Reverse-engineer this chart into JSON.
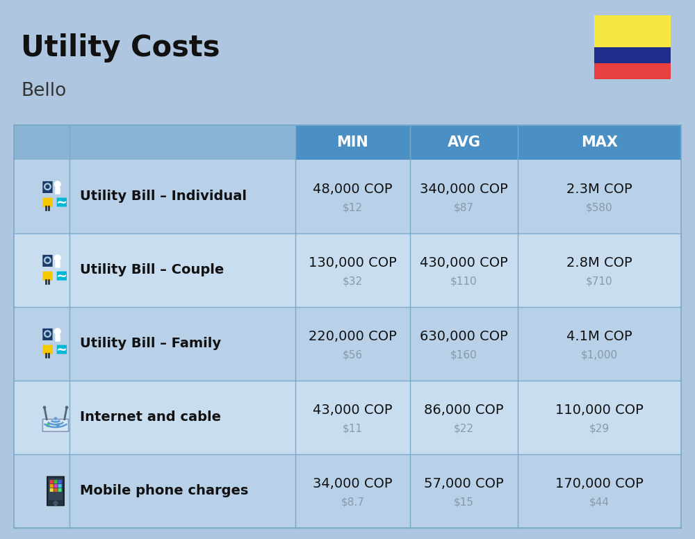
{
  "title": "Utility Costs",
  "subtitle": "Bello",
  "background_color": "#aec6df",
  "header_bg_color": "#4a90c4",
  "header_text_color": "#ffffff",
  "row_bg_color_odd": "#b8d0e8",
  "row_bg_color_even": "#c8ddf0",
  "sep_color": "#7aaac8",
  "header_labels": [
    "MIN",
    "AVG",
    "MAX"
  ],
  "rows": [
    {
      "label": "Utility Bill – Individual",
      "min_cop": "48,000 COP",
      "min_usd": "$12",
      "avg_cop": "340,000 COP",
      "avg_usd": "$87",
      "max_cop": "2.3M COP",
      "max_usd": "$580",
      "icon": "utility"
    },
    {
      "label": "Utility Bill – Couple",
      "min_cop": "130,000 COP",
      "min_usd": "$32",
      "avg_cop": "430,000 COP",
      "avg_usd": "$110",
      "max_cop": "2.8M COP",
      "max_usd": "$710",
      "icon": "utility"
    },
    {
      "label": "Utility Bill – Family",
      "min_cop": "220,000 COP",
      "min_usd": "$56",
      "avg_cop": "630,000 COP",
      "avg_usd": "$160",
      "max_cop": "4.1M COP",
      "max_usd": "$1,000",
      "icon": "utility"
    },
    {
      "label": "Internet and cable",
      "min_cop": "43,000 COP",
      "min_usd": "$11",
      "avg_cop": "86,000 COP",
      "avg_usd": "$22",
      "max_cop": "110,000 COP",
      "max_usd": "$29",
      "icon": "internet"
    },
    {
      "label": "Mobile phone charges",
      "min_cop": "34,000 COP",
      "min_usd": "$8.7",
      "avg_cop": "57,000 COP",
      "avg_usd": "$15",
      "max_cop": "170,000 COP",
      "max_usd": "$44",
      "icon": "mobile"
    }
  ],
  "flag_colors": [
    "#f5e642",
    "#1e2e8a",
    "#e84040"
  ],
  "title_fontsize": 30,
  "subtitle_fontsize": 19,
  "header_fontsize": 15,
  "label_fontsize": 14,
  "cop_fontsize": 14,
  "usd_fontsize": 11,
  "usd_color": "#8899aa"
}
